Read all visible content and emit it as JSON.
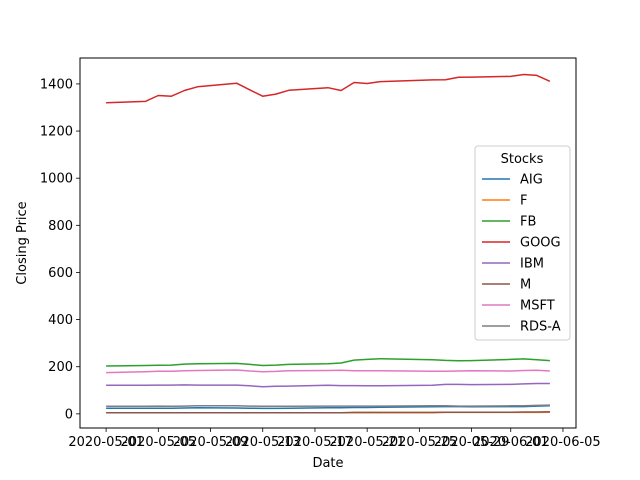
{
  "chart_data": {
    "type": "line",
    "title": "",
    "xlabel": "Date",
    "ylabel": "Closing Price",
    "legend": {
      "title": "Stocks",
      "placement": "center-right"
    },
    "grid": false,
    "x_tick_labels": [
      "2020-05-01",
      "2020-05-05",
      "2020-05-09",
      "2020-05-13",
      "2020-05-17",
      "2020-05-21",
      "2020-05-25",
      "2020-05-29",
      "2020-06-01",
      "2020-06-05"
    ],
    "xlim": [
      "2020-04-29",
      "2020-06-06"
    ],
    "ylim": [
      -60,
      1510
    ],
    "y_ticks": [
      0,
      200,
      400,
      600,
      800,
      1000,
      1200,
      1400
    ],
    "colors": {
      "AIG": "#1f77b4",
      "F": "#ff7f0e",
      "FB": "#2ca02c",
      "GOOG": "#d62728",
      "IBM": "#9467bd",
      "M": "#8c564b",
      "MSFT": "#e377c2",
      "RDS-A": "#7f7f7f"
    },
    "x": [
      "2020-05-01",
      "2020-05-04",
      "2020-05-05",
      "2020-05-06",
      "2020-05-07",
      "2020-05-08",
      "2020-05-11",
      "2020-05-12",
      "2020-05-13",
      "2020-05-14",
      "2020-05-15",
      "2020-05-18",
      "2020-05-19",
      "2020-05-20",
      "2020-05-21",
      "2020-05-22",
      "2020-05-26",
      "2020-05-27",
      "2020-05-28",
      "2020-05-29",
      "2020-06-01",
      "2020-06-02",
      "2020-06-03",
      "2020-06-04"
    ],
    "series": [
      {
        "name": "AIG",
        "values": [
          24,
          24,
          24,
          24,
          25,
          26,
          25,
          24,
          23,
          23,
          24,
          26,
          26,
          27,
          27,
          28,
          30,
          31,
          31,
          30,
          31,
          31,
          33,
          34
        ]
      },
      {
        "name": "F",
        "values": [
          5,
          5,
          5,
          5,
          5,
          5,
          5,
          5,
          5,
          5,
          5,
          5,
          5,
          5,
          5,
          5,
          5,
          6,
          6,
          6,
          6,
          6,
          6,
          7
        ]
      },
      {
        "name": "FB",
        "values": [
          203,
          205,
          206,
          207,
          211,
          213,
          214,
          210,
          205,
          207,
          210,
          213,
          216,
          228,
          231,
          234,
          230,
          227,
          225,
          226,
          231,
          233,
          230,
          226
        ]
      },
      {
        "name": "GOOG",
        "values": [
          1320,
          1326,
          1351,
          1348,
          1372,
          1388,
          1403,
          1375,
          1348,
          1357,
          1373,
          1384,
          1372,
          1406,
          1402,
          1410,
          1417,
          1418,
          1428,
          1429,
          1432,
          1440,
          1436,
          1411
        ]
      },
      {
        "name": "IBM",
        "values": [
          121,
          121,
          122,
          122,
          123,
          122,
          122,
          119,
          115,
          117,
          118,
          121,
          120,
          120,
          119,
          119,
          121,
          125,
          125,
          124,
          125,
          127,
          129,
          129
        ]
      },
      {
        "name": "M",
        "values": [
          5,
          5,
          5,
          5,
          5,
          5,
          5,
          5,
          5,
          5,
          5,
          5,
          5,
          6,
          6,
          6,
          6,
          7,
          7,
          7,
          7,
          8,
          8,
          9
        ]
      },
      {
        "name": "MSFT",
        "values": [
          175,
          179,
          181,
          181,
          183,
          184,
          186,
          182,
          179,
          180,
          183,
          184,
          185,
          183,
          183,
          183,
          181,
          181,
          182,
          183,
          182,
          184,
          185,
          182
        ]
      },
      {
        "name": "RDS-A",
        "values": [
          32,
          32,
          33,
          32,
          33,
          34,
          34,
          33,
          32,
          32,
          32,
          33,
          33,
          33,
          33,
          33,
          34,
          34,
          33,
          33,
          34,
          34,
          36,
          37
        ]
      }
    ]
  }
}
